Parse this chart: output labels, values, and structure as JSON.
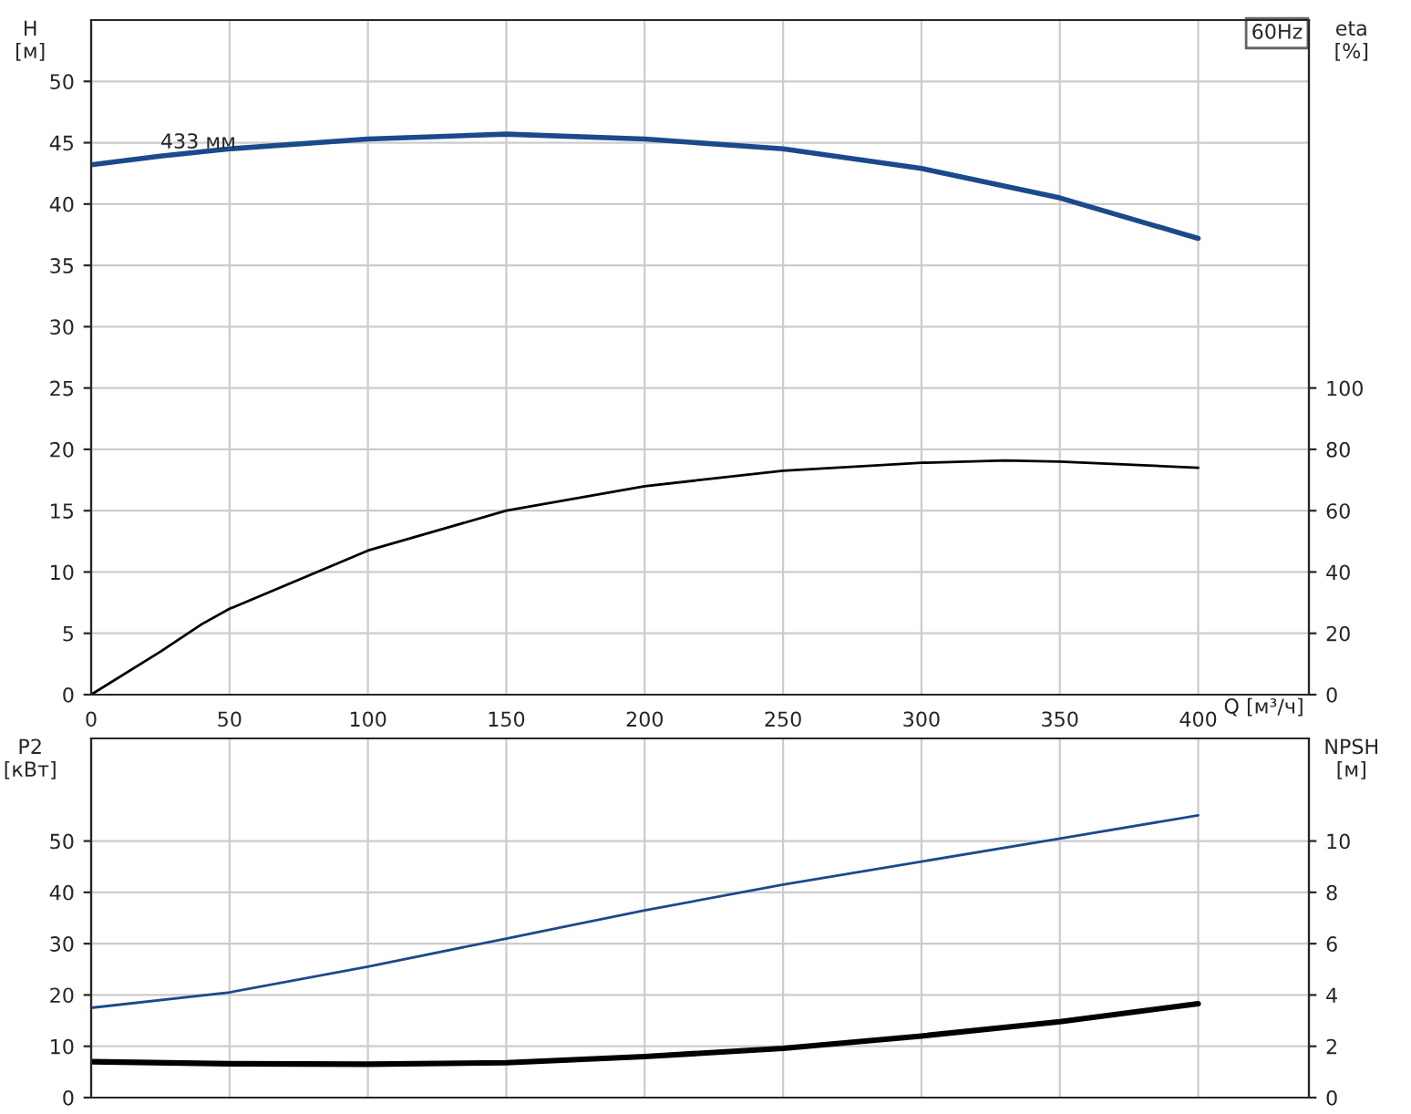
{
  "chart_data": [
    {
      "type": "line",
      "title": "60Hz",
      "xlabel": "Q [м³/ч]",
      "ylabel": "H\n[м]",
      "y2label": "eta\n[%]",
      "xlim": [
        0,
        440
      ],
      "xticks": [
        0,
        50,
        100,
        150,
        200,
        250,
        300,
        350,
        400
      ],
      "ylim": [
        0,
        55
      ],
      "yticks": [
        0,
        5,
        10,
        15,
        20,
        25,
        30,
        35,
        40,
        45,
        50
      ],
      "y2lim": [
        0,
        220
      ],
      "y2ticks": [
        0,
        20,
        40,
        60,
        80,
        100
      ],
      "grid": true,
      "annotations": [
        {
          "text": "433 мм",
          "x": 25,
          "y": 44.2
        }
      ],
      "series": [
        {
          "color": "#1a4a8a",
          "x": [
            0,
            25,
            50,
            100,
            150,
            200,
            250,
            300,
            350,
            400
          ],
          "values": [
            43.2,
            43.9,
            44.5,
            45.3,
            45.7,
            45.3,
            44.5,
            42.9,
            40.5,
            37.2
          ]
        },
        {
          "color": "#000000",
          "axis": "y2",
          "x": [
            0,
            25,
            40,
            50,
            100,
            150,
            200,
            250,
            300,
            330,
            350,
            400
          ],
          "values": [
            0,
            14,
            23,
            28,
            47,
            60,
            68,
            73,
            75.6,
            76.4,
            76,
            74
          ]
        }
      ]
    },
    {
      "type": "line",
      "ylabel": "P2\n[кВт]",
      "y2label": "NPSH\n[м]",
      "tick_labels": "y",
      "xlim": [
        0,
        440
      ],
      "xticks": [
        0,
        50,
        100,
        150,
        200,
        250,
        300,
        350,
        400
      ],
      "ylim": [
        0,
        70
      ],
      "yticks": [
        0,
        10,
        20,
        30,
        40,
        50
      ],
      "y2lim": [
        0,
        14
      ],
      "y2ticks": [
        0,
        2,
        4,
        6,
        8,
        10
      ],
      "grid": true,
      "series": [
        {
          "color": "#1a4a8a",
          "x": [
            0,
            50,
            100,
            150,
            200,
            250,
            300,
            350,
            400
          ],
          "values": [
            17.5,
            20.5,
            25.5,
            31,
            36.5,
            41.5,
            46,
            50.5,
            55
          ]
        },
        {
          "color": "#000000",
          "axis": "y2",
          "x": [
            0,
            50,
            100,
            150,
            200,
            250,
            300,
            350,
            400
          ],
          "values": [
            1.4,
            1.32,
            1.3,
            1.36,
            1.6,
            1.92,
            2.4,
            2.96,
            3.66
          ]
        }
      ]
    }
  ]
}
